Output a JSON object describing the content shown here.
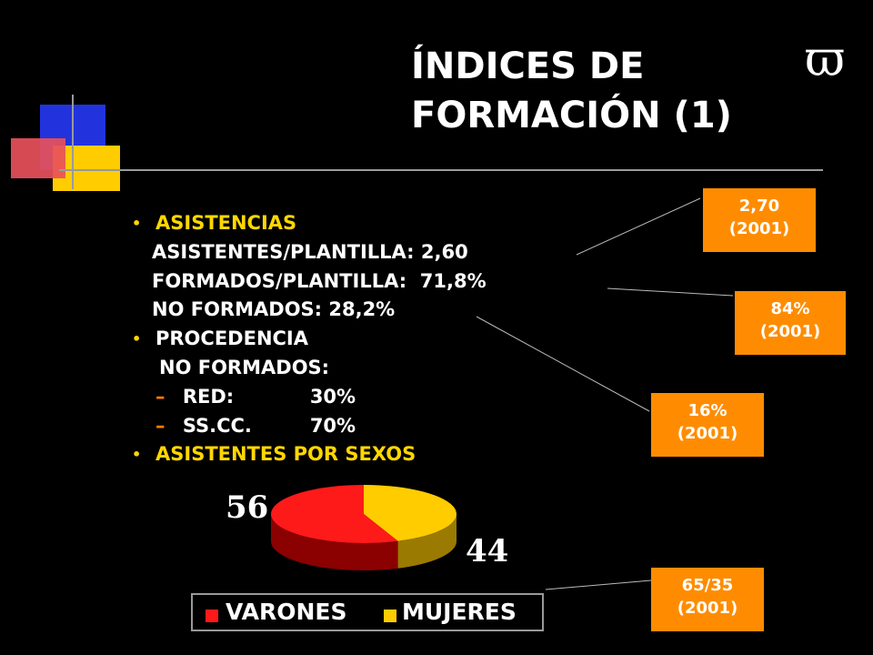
{
  "title": {
    "line1": "ÍNDICES DE",
    "line2": "FORMACIÓN (1)"
  },
  "symbol": "ϖ",
  "bullets": {
    "asistencias": "ASISTENCIAS",
    "asistentes_plantilla": "ASISTENTES/PLANTILLA: 2,60",
    "formados_plantilla": "FORMADOS/PLANTILLA:  71,8%",
    "no_formados": "NO FORMADOS: 28,2%",
    "procedencia": "PROCEDENCIA",
    "no_formados_heading": "NO FORMADOS:",
    "red_label": "RED:",
    "red_value": "30%",
    "ssccc_label": "SS.CC.",
    "ssccc_value": "70%",
    "asistentes_por_sexos": "ASISTENTES POR SEXOS"
  },
  "callouts": [
    {
      "value": "2,70",
      "year": "(2001)"
    },
    {
      "value": "84%",
      "year": "(2001)"
    },
    {
      "value": "16%",
      "year": "(2001)"
    },
    {
      "value": "65/35",
      "year": "(2001)"
    }
  ],
  "colors": {
    "accent_yellow": "#FFD700",
    "callout_orange": "#FF8C00",
    "varones": "#FF1A1A",
    "mujeres": "#FFCC00"
  },
  "chart_data": {
    "type": "pie",
    "title": "ASISTENTES POR SEXOS",
    "categories": [
      "VARONES",
      "MUJERES"
    ],
    "values": [
      56,
      44
    ],
    "data_labels": [
      "56",
      "44"
    ],
    "legend": "bottom",
    "style": "3d"
  }
}
